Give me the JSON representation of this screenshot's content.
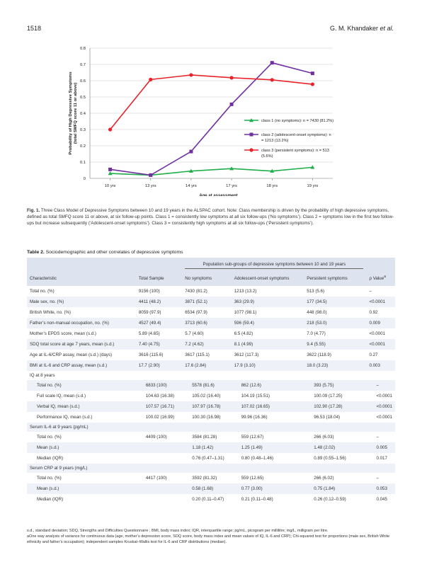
{
  "header": {
    "page_number": "1518",
    "authors": "G. M. Khandaker ",
    "etal": "et al."
  },
  "chart_data": {
    "type": "line",
    "categories": [
      "10 yrs",
      "13 yrs",
      "14 yrs",
      "17 yrs",
      "18 yrs",
      "19 yrs"
    ],
    "ylim": [
      0,
      0.8
    ],
    "yticks": [
      "0",
      "0.1",
      "0.2",
      "0.3",
      "0.4",
      "0.5",
      "0.6",
      "0.7",
      "0.8"
    ],
    "ylabel_line1": "Probability of High Depressive Symptoms",
    "ylabel_line2": "(total SMFQ score 11 or above)",
    "xlabel": "Age at assessment",
    "grid": true,
    "legend_position": "right",
    "series": [
      {
        "name": "class 1 (no symptoms): n = 7430 (81.2%)",
        "legend_lines": [
          "class 1 (no symptoms): n = 7430 (81.2%)"
        ],
        "color": "#1fae4a",
        "marker": "triangle",
        "values": [
          0.03,
          0.02,
          0.045,
          0.06,
          0.045,
          0.068
        ]
      },
      {
        "name": "class 2 (adolescent-onset symptoms): n = 1213 (13.2%)",
        "legend_lines": [
          "class 2 (adolescent-onset symptoms): n",
          "= 1213 (13.2%)"
        ],
        "color": "#7030a0",
        "marker": "square",
        "values": [
          0.055,
          0.02,
          0.165,
          0.455,
          0.71,
          0.645
        ]
      },
      {
        "name": "class 3 (persistent symptoms): n = 513 (5.6%)",
        "legend_lines": [
          "class 3 (persistent symptoms): n = 513",
          "(5.6%)"
        ],
        "color": "#e8232a",
        "marker": "circle",
        "values": [
          0.3,
          0.607,
          0.635,
          0.618,
          0.605,
          0.578
        ]
      }
    ]
  },
  "caption": {
    "label": "Fig. 1.",
    "text": "Three Class Model of Depressive Symptoms between 10 and 19 years in the ALSPAC cohort. Note: Class membership is driven by the probability of high depressive symptoms, defined as total SMFQ score 11 or above, at six follow-up points. Class 1 = consistently low symptoms at all six follow-ups (‘No symptoms’). Class 2 = symptoms low in the first two follow-ups but increase subsequently (‘Adolescent-onset symptoms’). Class 3 = consistently high symptoms at all six follow-ups (‘Persistent symptoms’)."
  },
  "table": {
    "label": "Table 2.",
    "title": "Sociodemographic and other correlates of depressive symptoms",
    "group_header": "Population sub-groups of depressive symptoms between 10 and 19 years",
    "columns": [
      "Characteristic",
      "Total Sample",
      "No symptoms",
      "Adolescent-onset symptoms",
      "Persistent symptoms",
      "ρ Value"
    ],
    "pvalue_superscript": "a",
    "rows": [
      {
        "cells": [
          "Total no. (%)",
          "9156 (100)",
          "7430 (81.2)",
          "1213 (13.2)",
          "513 (5.6)",
          "–"
        ]
      },
      {
        "cells": [
          "Male sex, no. (%)",
          "4411 (48.2)",
          "3871 (52.1)",
          "363 (29.9)",
          "177 (34.5)",
          "<0.0001"
        ]
      },
      {
        "cells": [
          "British White, no. (%)",
          "8059 (97.9)",
          "6534 (97.9)",
          "1077 (98.1)",
          "448 (98.0)",
          "0.92"
        ]
      },
      {
        "cells": [
          "Father’s non-manual occupation, no. (%)",
          "4527 (49.4)",
          "3713 (60.6)",
          "596 (59.4)",
          "218 (53.0)",
          "0.009"
        ]
      },
      {
        "cells": [
          "Mother’s EPDS score, mean (s.d.)",
          "5.89 (4.65)",
          "5.7 (4.60)",
          "6.5 (4.82)",
          "7.0 (4.77)",
          "<0.0001"
        ]
      },
      {
        "cells": [
          "SDQ total score at age 7 years, mean (s.d.)",
          "7.40 (4.75)",
          "7.2 (4.62)",
          "8.1 (4.99)",
          "9.4 (5.55)",
          "<0.0001"
        ]
      },
      {
        "cells": [
          "Age at IL-6/CRP assay, mean (s.d.) (days)",
          "3616 (115.6)",
          "3617 (115.1)",
          "3612 (117.3)",
          "3622 (118.9)",
          "0.27"
        ]
      },
      {
        "cells": [
          "BMI at IL-6 and CRP assay, mean (s.d.)",
          "17.7 (2.90)",
          "17.6 (2.84)",
          "17.9 (3.10)",
          "18.0 (3.23)",
          "0.003"
        ]
      },
      {
        "cells": [
          "IQ at 8 years",
          "",
          "",
          "",
          "",
          ""
        ],
        "type": "group"
      },
      {
        "cells": [
          "Total no. (%)",
          "6833 (100)",
          "5578 (81.6)",
          "862 (12.6)",
          "393 (5.75)",
          "–"
        ],
        "type": "sub"
      },
      {
        "cells": [
          "Full scale IQ,    mean (s.d.)",
          "104.63 (16.38)",
          "105.02 (16.40)",
          "104.19 (15.51)",
          "100.09 (17.25)",
          "<0.0001"
        ],
        "type": "sub"
      },
      {
        "cells": [
          "Verbal IQ, mean (s.d.)",
          "107.57 (16.71)",
          "107.97 (16.78)",
          "107.02 (16.65)",
          "102.90 (17.28)",
          "<0.0001"
        ],
        "type": "sub"
      },
      {
        "cells": [
          "Performance IQ, mean (s.d.)",
          "100.02 (16.99)",
          "100.30 (16.98)",
          "99.96 (16.36)",
          "96.53 (18.04)",
          "<0.0001"
        ],
        "type": "sub"
      },
      {
        "cells": [
          "Serum IL-6 at 9 years (pg/mL)",
          "",
          "",
          "",
          "",
          ""
        ],
        "type": "group"
      },
      {
        "cells": [
          "Total no. (%)",
          "4409 (100)",
          "3584 (81.28)",
          "559 (12.67)",
          "266 (6.03)",
          "–"
        ],
        "type": "sub"
      },
      {
        "cells": [
          "Mean (s.d.)",
          "",
          "1.18 (1.42)",
          "1.25 (1.49)",
          "1.48 (2.02)",
          "0.005"
        ],
        "type": "sub"
      },
      {
        "cells": [
          "Median (IQR)",
          "",
          "0.76 (0.47–1.31)",
          "0.80 (0.48–1.46)",
          "0.89 (0.55–1.56)",
          "0.017"
        ],
        "type": "sub"
      },
      {
        "cells": [
          "Serum CRP at 9 years (mg/L)",
          "",
          "",
          "",
          "",
          ""
        ],
        "type": "group"
      },
      {
        "cells": [
          "Total no. (%)",
          "4417 (100)",
          "3592 (81.32)",
          "559 (12.65)",
          "266 (6.02)",
          "–"
        ],
        "type": "sub"
      },
      {
        "cells": [
          "Mean (s.d.)",
          "",
          "0.58 (1.68)",
          "0.77 (3.00)",
          "0.75 (1.84)",
          "0.053"
        ],
        "type": "sub"
      },
      {
        "cells": [
          "Median (IQR)",
          "",
          "0.20 (0.11–0.47)",
          "0.21 (0.11–0.48)",
          "0.26 (0.12–0.59)",
          "0.045"
        ],
        "type": "sub"
      }
    ]
  },
  "footnotes": [
    "s.d., standard deviation; SDQ, Strengths and Difficulties Questionnaire ; BMI, body mass index; IQR, interquartile range; pg/mL, picogram per millilitre; mg/L, milligram per litre.",
    "aOne way analysis of variance for continuous data (age, mother’s depression score, SDQ score, body mass index and mean values of IQ, IL-6 and CRP); Chi-squared test for proportions (male sex, British White ethnicity and father’s occupation); independent samples Kruskal–Wallis test for IL-6 and CRP distributions (median)."
  ]
}
